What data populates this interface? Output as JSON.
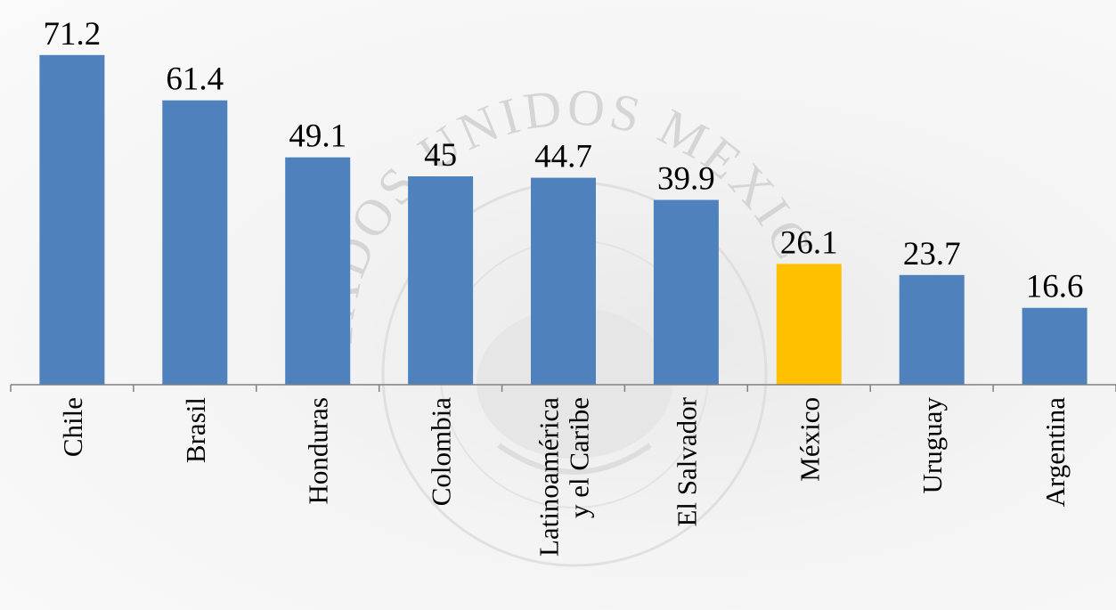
{
  "watermark": {
    "seal_text": "ESTADOS UNIDOS MEXICANOS"
  },
  "colors": {
    "default_bar": "#4f81bd",
    "highlight_bar": "#ffc000",
    "axis": "#808080"
  },
  "chart_data": {
    "type": "bar",
    "title": "",
    "xlabel": "",
    "ylabel": "",
    "ylim": [
      0,
      75
    ],
    "grid": false,
    "legend": "none",
    "highlight_category": "México",
    "categories": [
      [
        "Chile"
      ],
      [
        "Brasil"
      ],
      [
        "Honduras"
      ],
      [
        "Colombia"
      ],
      [
        "Latinoamérica",
        "y el Caribe"
      ],
      [
        "El Salvador"
      ],
      [
        "México"
      ],
      [
        "Uruguay"
      ],
      [
        "Argentina"
      ]
    ],
    "values": [
      71.2,
      61.4,
      49.1,
      45,
      44.7,
      39.9,
      26.1,
      23.7,
      16.6
    ],
    "value_labels": [
      "71.2",
      "61.4",
      "49.1",
      "45",
      "44.7",
      "39.9",
      "26.1",
      "23.7",
      "16.6"
    ]
  }
}
